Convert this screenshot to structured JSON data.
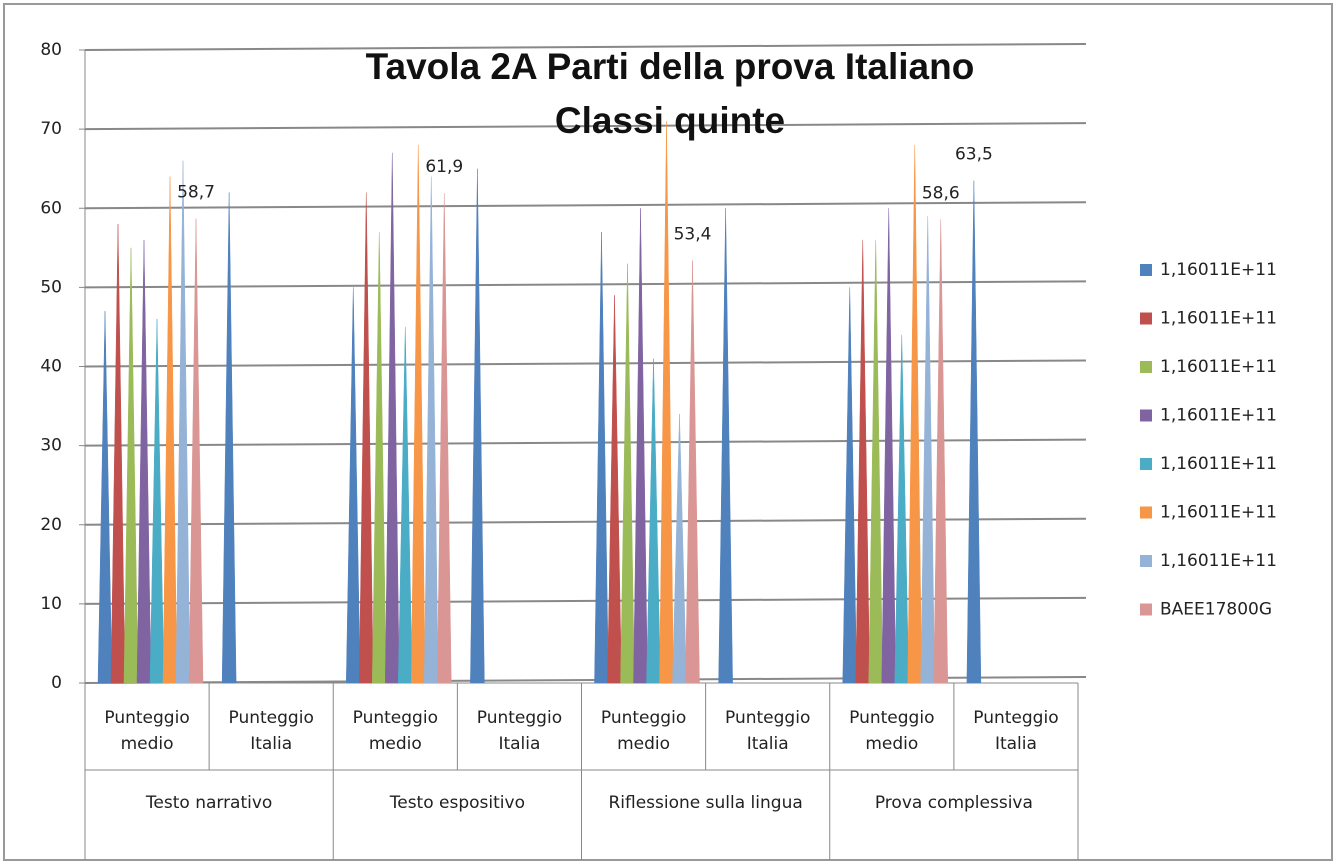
{
  "chart_data": {
    "type": "cone",
    "title": "Tavola 2A Parti della prova Italiano Classi quinte",
    "categories": [
      "Punteggio medio",
      "Punteggio Italia",
      "Punteggio medio",
      "Punteggio Italia",
      "Punteggio medio",
      "Punteggio Italia",
      "Punteggio medio",
      "Punteggio Italia"
    ],
    "groups": [
      "Testo narrativo",
      "Testo espositivo",
      "Riflessione sulla lingua",
      "Prova complessiva"
    ],
    "series": [
      {
        "name": "1,16011E+11",
        "color": "#4f81bd",
        "values": [
          47,
          62,
          50,
          65,
          57,
          60,
          50,
          63.5
        ],
        "value_labels": [
          null,
          null,
          null,
          null,
          null,
          null,
          null,
          "63,5"
        ]
      },
      {
        "name": "1,16011E+11",
        "color": "#c0504d",
        "values": [
          58,
          null,
          62,
          null,
          49,
          null,
          56,
          null
        ]
      },
      {
        "name": "1,16011E+11",
        "color": "#9bbb59",
        "values": [
          55,
          null,
          57,
          null,
          53,
          null,
          56,
          null
        ]
      },
      {
        "name": "1,16011E+11",
        "color": "#8064a2",
        "values": [
          56,
          null,
          67,
          null,
          60,
          null,
          60,
          null
        ]
      },
      {
        "name": "1,16011E+11",
        "color": "#4bacc6",
        "values": [
          46,
          null,
          45,
          null,
          41,
          null,
          44,
          null
        ]
      },
      {
        "name": "1,16011E+11",
        "color": "#f79646",
        "values": [
          64,
          null,
          68,
          null,
          71,
          null,
          68,
          null
        ]
      },
      {
        "name": "1,16011E+11",
        "color": "#95b3d7",
        "values": [
          66,
          null,
          64,
          null,
          34,
          null,
          59,
          null
        ]
      },
      {
        "name": "BAEE17800G",
        "color": "#d99694",
        "values": [
          58.7,
          null,
          61.9,
          null,
          53.4,
          null,
          58.6,
          null
        ],
        "value_labels": [
          "58,7",
          null,
          "61,9",
          null,
          "53,4",
          null,
          "58,6",
          null
        ]
      }
    ],
    "ylim": [
      0,
      80
    ],
    "yticks": [
      0,
      10,
      20,
      30,
      40,
      50,
      60,
      70,
      80
    ],
    "grid": true,
    "legend": "right"
  }
}
